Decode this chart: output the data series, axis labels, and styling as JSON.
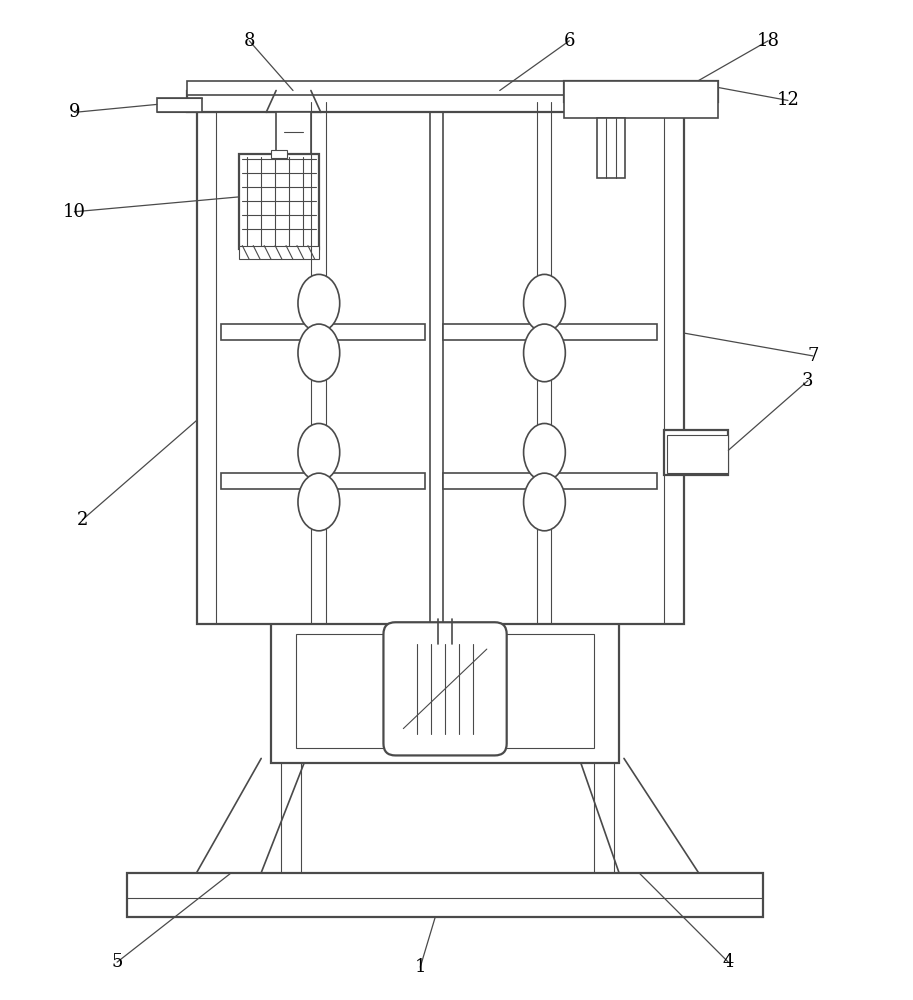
{
  "bg_color": "#ffffff",
  "line_color": "#4a4a4a",
  "lw_thin": 0.8,
  "lw_med": 1.2,
  "lw_thick": 1.6,
  "fig_width": 9.13,
  "fig_height": 10.0,
  "label_fontsize": 13
}
